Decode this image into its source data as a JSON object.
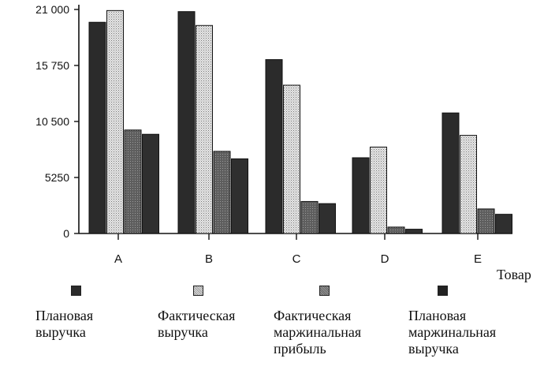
{
  "chart_data": {
    "type": "bar",
    "categories": [
      "A",
      "B",
      "C",
      "D",
      "E"
    ],
    "xlabel": "Товар",
    "ylabel": "",
    "ylim": [
      0,
      21000
    ],
    "yticks": [
      0,
      5250,
      10500,
      15750,
      21000
    ],
    "ytick_labels": [
      "0",
      "5250",
      "10 500",
      "15 750",
      "21 000"
    ],
    "grid": false,
    "legend_position": "bottom",
    "series": [
      {
        "name": "Плановая\nвыручка",
        "color": "#2b2b2b",
        "values": [
          19800,
          20800,
          16300,
          7100,
          11300
        ]
      },
      {
        "name": "Фактическая\nвыручка",
        "color": "#d9d9d9",
        "values": [
          20900,
          19500,
          13900,
          8100,
          9200
        ]
      },
      {
        "name": "Фактическая\nмаржинальная\nприбыль",
        "color": "#6e6e6e",
        "values": [
          9700,
          7700,
          3000,
          600,
          2300
        ]
      },
      {
        "name": "Плановая\nмаржинальная\nвыручка",
        "color": "#3a3a3a",
        "values": [
          9300,
          7000,
          2800,
          400,
          1800
        ]
      }
    ]
  }
}
